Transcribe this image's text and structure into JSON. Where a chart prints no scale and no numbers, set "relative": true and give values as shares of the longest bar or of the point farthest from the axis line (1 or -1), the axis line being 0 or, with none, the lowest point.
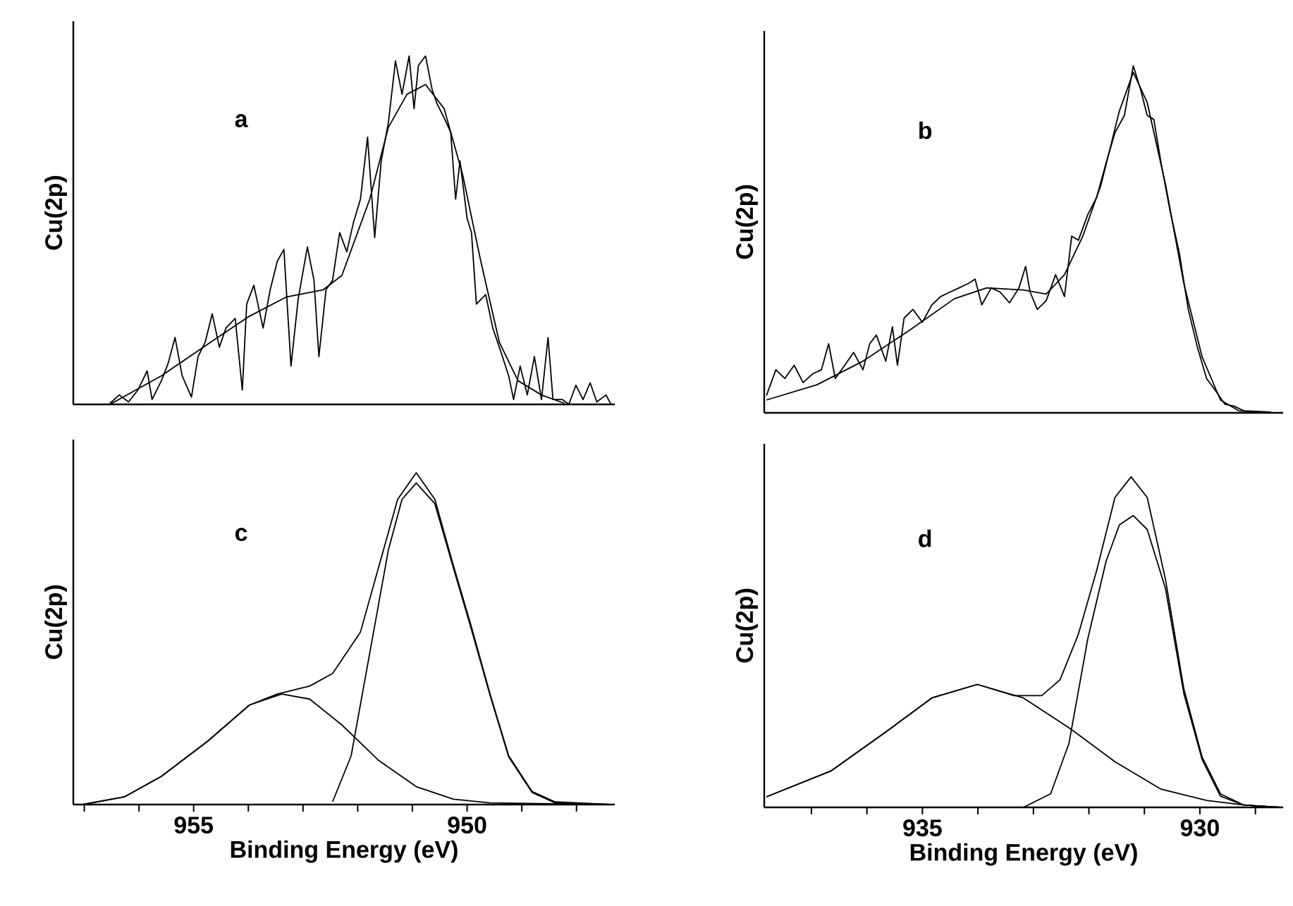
{
  "chart_data": [
    {
      "type": "line",
      "ylabel": "Cu(2p)",
      "annotations": [
        "a"
      ],
      "xlim": [
        957.2,
        947.3
      ],
      "relative": true,
      "tick_labels": false,
      "series": [
        {
          "color": "#000000",
          "x": [
            956.53,
            956.36,
            956.19,
            956.02,
            955.85,
            955.76,
            955.59,
            955.47,
            955.34,
            955.21,
            955.04,
            954.92,
            954.79,
            954.66,
            954.53,
            954.41,
            954.24,
            954.11,
            954.03,
            953.9,
            953.73,
            953.6,
            953.47,
            953.35,
            953.22,
            953.09,
            952.92,
            952.8,
            952.71,
            952.58,
            952.46,
            952.33,
            952.2,
            952.08,
            951.95,
            951.82,
            951.69,
            951.57,
            951.44,
            951.31,
            951.19,
            951.06,
            950.97,
            950.89,
            950.76,
            950.64,
            950.55,
            950.42,
            950.3,
            950.21,
            950.13,
            950.0,
            949.92,
            949.83,
            949.66,
            949.53,
            949.41,
            949.24,
            949.15,
            949.03,
            948.9,
            948.77,
            948.64,
            948.52,
            948.43,
            948.26,
            948.14,
            948.01,
            947.88,
            947.75,
            947.63,
            947.46,
            947.37
          ],
          "values": [
            0.003,
            0.027,
            0.007,
            0.041,
            0.096,
            0.014,
            0.068,
            0.116,
            0.192,
            0.082,
            0.021,
            0.137,
            0.178,
            0.26,
            0.164,
            0.219,
            0.247,
            0.041,
            0.288,
            0.342,
            0.219,
            0.329,
            0.411,
            0.445,
            0.11,
            0.301,
            0.452,
            0.356,
            0.137,
            0.329,
            0.356,
            0.493,
            0.438,
            0.521,
            0.589,
            0.767,
            0.479,
            0.699,
            0.808,
            0.986,
            0.89,
            1.0,
            0.849,
            0.973,
            1.0,
            0.904,
            0.863,
            0.822,
            0.781,
            0.589,
            0.699,
            0.534,
            0.493,
            0.288,
            0.315,
            0.219,
            0.164,
            0.082,
            0.014,
            0.11,
            0.027,
            0.137,
            0.014,
            0.192,
            0.014,
            0.014,
            0,
            0.055,
            0.014,
            0.062,
            0.007,
            0.027,
            0
          ]
        },
        {
          "color": "#000000",
          "x": [
            956.53,
            955.59,
            954.58,
            953.98,
            953.31,
            952.63,
            952.29,
            951.78,
            951.44,
            951.1,
            950.76,
            950.42,
            950.08,
            949.75,
            949.41,
            949.07,
            948.64,
            948.22
          ],
          "values": [
            0,
            0.082,
            0.19,
            0.253,
            0.308,
            0.329,
            0.37,
            0.589,
            0.795,
            0.89,
            0.918,
            0.849,
            0.658,
            0.411,
            0.178,
            0.068,
            0.027,
            0.003
          ]
        }
      ]
    },
    {
      "type": "line",
      "ylabel": "Cu(2p)",
      "annotations": [
        "b"
      ],
      "xlim": [
        937.85,
        928.5
      ],
      "relative": true,
      "tick_labels": false,
      "series": [
        {
          "color": "#000000",
          "x": [
            937.81,
            937.64,
            937.48,
            937.31,
            937.15,
            936.98,
            936.82,
            936.69,
            936.57,
            936.4,
            936.24,
            936.07,
            935.95,
            935.83,
            935.66,
            935.54,
            935.45,
            935.33,
            935.17,
            935.0,
            934.83,
            934.67,
            934.5,
            934.34,
            934.17,
            934.05,
            933.93,
            933.76,
            933.6,
            933.43,
            933.26,
            933.14,
            933.06,
            932.93,
            932.77,
            932.6,
            932.44,
            932.31,
            932.19,
            932.02,
            931.86,
            931.69,
            931.53,
            931.36,
            931.2,
            931.07,
            930.95,
            930.83,
            930.7,
            930.54,
            930.37,
            930.21,
            930.04,
            929.88,
            929.71,
            929.55,
            929.38,
            929.21,
            928.72
          ],
          "values": [
            0.05,
            0.124,
            0.099,
            0.137,
            0.087,
            0.112,
            0.124,
            0.199,
            0.099,
            0.137,
            0.174,
            0.124,
            0.199,
            0.224,
            0.149,
            0.248,
            0.137,
            0.273,
            0.298,
            0.261,
            0.311,
            0.335,
            0.348,
            0.36,
            0.373,
            0.385,
            0.311,
            0.36,
            0.348,
            0.317,
            0.36,
            0.422,
            0.348,
            0.298,
            0.323,
            0.398,
            0.335,
            0.509,
            0.497,
            0.571,
            0.621,
            0.72,
            0.807,
            0.857,
            1.0,
            0.932,
            0.857,
            0.845,
            0.72,
            0.584,
            0.46,
            0.298,
            0.186,
            0.099,
            0.062,
            0.025,
            0.019,
            0.006,
            0.002
          ]
        },
        {
          "color": "#000000",
          "x": [
            937.81,
            936.9,
            936.07,
            935.25,
            934.42,
            933.84,
            933.18,
            932.77,
            932.44,
            932.11,
            931.78,
            931.45,
            931.2,
            930.95,
            930.62,
            930.29,
            929.96,
            929.63,
            929.3,
            928.72
          ],
          "values": [
            0.037,
            0.081,
            0.149,
            0.236,
            0.329,
            0.36,
            0.354,
            0.342,
            0.398,
            0.509,
            0.658,
            0.87,
            0.981,
            0.894,
            0.658,
            0.373,
            0.161,
            0.037,
            0.006,
            0
          ]
        }
      ]
    },
    {
      "type": "line",
      "ylabel": "Cu(2p)",
      "xlabel": "Binding Energy (eV)",
      "annotations": [
        "c"
      ],
      "xlim": [
        957.2,
        947.3
      ],
      "relative": true,
      "tick_labels": "x",
      "xticks": [
        {
          "value": 957,
          "label": null
        },
        {
          "value": 956,
          "label": null
        },
        955,
        {
          "value": 954,
          "label": null
        },
        {
          "value": 953,
          "label": null
        },
        {
          "value": 952,
          "label": null
        },
        {
          "value": 951,
          "label": null
        },
        950,
        {
          "value": 949,
          "label": null
        },
        {
          "value": 948,
          "label": null
        }
      ],
      "series": [
        {
          "color": "#000000",
          "x": [
            957.03,
            956.27,
            955.59,
            954.75,
            953.98,
            953.47,
            952.88,
            952.46,
            951.95,
            951.61,
            951.27,
            950.93,
            950.59,
            950.25,
            949.92,
            949.58,
            949.24,
            948.81,
            948.39,
            947.37
          ],
          "values": [
            0,
            0.023,
            0.085,
            0.19,
            0.3,
            0.333,
            0.357,
            0.395,
            0.52,
            0.72,
            0.92,
            1.0,
            0.92,
            0.72,
            0.535,
            0.333,
            0.147,
            0.039,
            0.008,
            0
          ]
        },
        {
          "color": "#000000",
          "x": [
            957.03,
            956.27,
            955.59,
            954.75,
            953.98,
            953.39,
            952.88,
            952.29,
            951.61,
            950.93,
            950.25,
            949.58,
            947.37
          ],
          "values": [
            0,
            0.023,
            0.085,
            0.19,
            0.3,
            0.333,
            0.318,
            0.24,
            0.132,
            0.054,
            0.016,
            0.005,
            0
          ]
        },
        {
          "color": "#000000",
          "x": [
            952.46,
            952.12,
            951.78,
            951.44,
            951.19,
            950.93,
            950.59,
            950.25,
            949.92,
            949.58,
            949.24,
            948.81,
            948.39,
            947.37
          ],
          "values": [
            0.008,
            0.147,
            0.457,
            0.767,
            0.92,
            0.969,
            0.907,
            0.713,
            0.527,
            0.329,
            0.144,
            0.036,
            0.005,
            0
          ]
        }
      ]
    },
    {
      "type": "line",
      "ylabel": "Cu(2p)",
      "xlabel": "Binding Energy (eV)",
      "annotations": [
        "d"
      ],
      "xlim": [
        937.85,
        928.5
      ],
      "relative": true,
      "tick_labels": "x",
      "xticks": [
        {
          "value": 937,
          "label": null
        },
        {
          "value": 936,
          "label": null
        },
        935,
        {
          "value": 934,
          "label": null
        },
        {
          "value": 933,
          "label": null
        },
        {
          "value": 932,
          "label": null
        },
        {
          "value": 931,
          "label": null
        },
        930,
        {
          "value": 929,
          "label": null
        }
      ],
      "series": [
        {
          "color": "#000000",
          "x": [
            937.81,
            936.65,
            935.66,
            934.83,
            934.01,
            933.35,
            932.85,
            932.52,
            932.19,
            931.86,
            931.53,
            931.24,
            930.95,
            930.62,
            930.29,
            929.96,
            929.63,
            929.21,
            928.55
          ],
          "values": [
            0.032,
            0.11,
            0.228,
            0.331,
            0.372,
            0.338,
            0.338,
            0.386,
            0.524,
            0.717,
            0.938,
            1.0,
            0.938,
            0.69,
            0.359,
            0.152,
            0.041,
            0.007,
            0
          ]
        },
        {
          "color": "#000000",
          "x": [
            937.81,
            936.65,
            935.66,
            934.83,
            934.01,
            933.18,
            932.36,
            931.53,
            930.7,
            929.88,
            929.21,
            928.55
          ],
          "values": [
            0.032,
            0.11,
            0.228,
            0.331,
            0.372,
            0.331,
            0.241,
            0.138,
            0.055,
            0.021,
            0.007,
            0
          ]
        },
        {
          "color": "#000000",
          "x": [
            933.18,
            932.69,
            932.36,
            932.02,
            931.69,
            931.45,
            931.2,
            930.95,
            930.62,
            930.29,
            929.96,
            929.63,
            929.21,
            928.55
          ],
          "values": [
            0,
            0.041,
            0.193,
            0.51,
            0.745,
            0.855,
            0.883,
            0.841,
            0.662,
            0.345,
            0.145,
            0.034,
            0.007,
            0
          ]
        }
      ]
    }
  ]
}
